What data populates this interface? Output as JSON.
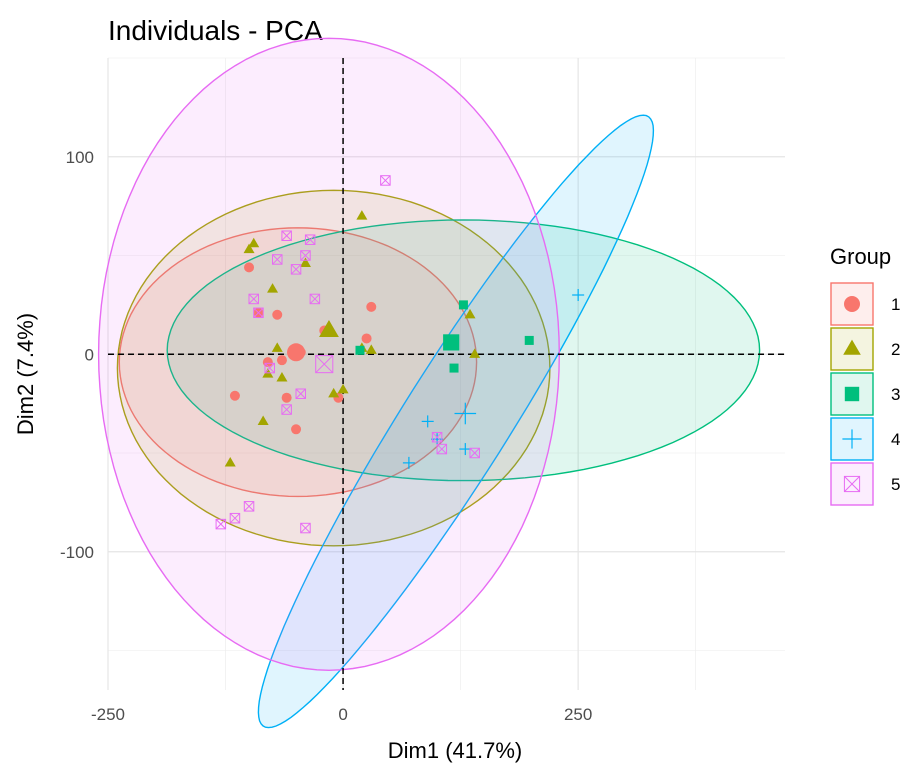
{
  "chart_data": {
    "type": "scatter",
    "title": "Individuals - PCA",
    "xlabel": "Dim1 (41.7%)",
    "ylabel": "Dim2 (7.4%)",
    "xlim": [
      -250,
      470
    ],
    "ylim": [
      -170,
      150
    ],
    "xticks": [
      -250,
      0,
      250
    ],
    "yticks": [
      -100,
      0,
      100
    ],
    "tick_labels": {
      "x": [
        "-250",
        "0",
        "250"
      ],
      "y": [
        "-100",
        "0",
        "100"
      ]
    },
    "grid": true,
    "legend": {
      "title": "Group",
      "position": "right"
    },
    "reference_lines": {
      "x": 0,
      "y": 0,
      "style": "dashed"
    },
    "series": [
      {
        "name": "1",
        "color": "#F8766D",
        "marker": "circle",
        "points": [
          [
            -115,
            -21
          ],
          [
            -100,
            44
          ],
          [
            -90,
            21
          ],
          [
            -80,
            -4
          ],
          [
            -70,
            20
          ],
          [
            -65,
            -3
          ],
          [
            -60,
            -22
          ],
          [
            -50,
            -38
          ],
          [
            -45,
            1
          ],
          [
            -20,
            12
          ],
          [
            -5,
            -22
          ],
          [
            25,
            8
          ],
          [
            30,
            24
          ]
        ],
        "centroid": [
          -50,
          1
        ],
        "ellipse": {
          "center": [
            -48,
            -4
          ],
          "rx": 190,
          "ry": 68,
          "angle": 0
        }
      },
      {
        "name": "2",
        "color": "#A3A500",
        "marker": "triangle",
        "points": [
          [
            -120,
            -55
          ],
          [
            -100,
            53
          ],
          [
            -95,
            56
          ],
          [
            -85,
            -34
          ],
          [
            -80,
            -10
          ],
          [
            -75,
            33
          ],
          [
            -70,
            3
          ],
          [
            -65,
            -12
          ],
          [
            -40,
            46
          ],
          [
            -10,
            -20
          ],
          [
            0,
            -18
          ],
          [
            20,
            70
          ],
          [
            20,
            3
          ],
          [
            30,
            2
          ],
          [
            135,
            20
          ],
          [
            140,
            0
          ]
        ],
        "centroid": [
          -15,
          12
        ],
        "ellipse": {
          "center": [
            -10,
            -7
          ],
          "rx": 230,
          "ry": 90,
          "angle": 0
        }
      },
      {
        "name": "3",
        "color": "#00BF7D",
        "marker": "square",
        "points": [
          [
            18,
            2
          ],
          [
            118,
            -7
          ],
          [
            128,
            25
          ],
          [
            198,
            7
          ]
        ],
        "centroid": [
          115,
          6
        ],
        "ellipse": {
          "center": [
            128,
            2
          ],
          "rx": 315,
          "ry": 66,
          "angle": 0
        }
      },
      {
        "name": "4",
        "color": "#00B0F6",
        "marker": "plus",
        "points": [
          [
            70,
            -55
          ],
          [
            90,
            -34
          ],
          [
            100,
            -43
          ],
          [
            130,
            -48
          ],
          [
            250,
            30
          ]
        ],
        "centroid": [
          130,
          -30
        ],
        "ellipse": {
          "center": [
            120,
            -34
          ],
          "rx": 258,
          "ry": 40,
          "angle": 36
        }
      },
      {
        "name": "5",
        "color": "#E76BF3",
        "marker": "squarecross",
        "points": [
          [
            -130,
            -86
          ],
          [
            -115,
            -83
          ],
          [
            -100,
            -77
          ],
          [
            -95,
            28
          ],
          [
            -90,
            21
          ],
          [
            -78,
            -7
          ],
          [
            -70,
            48
          ],
          [
            -60,
            60
          ],
          [
            -60,
            -28
          ],
          [
            -50,
            43
          ],
          [
            -45,
            -20
          ],
          [
            -40,
            50
          ],
          [
            -30,
            28
          ],
          [
            -40,
            -88
          ],
          [
            -35,
            58
          ],
          [
            45,
            88
          ],
          [
            100,
            -42
          ],
          [
            105,
            -48
          ],
          [
            140,
            -50
          ]
        ],
        "centroid": [
          -20,
          -5
        ],
        "ellipse": {
          "center": [
            -15,
            0
          ],
          "rx": 245,
          "ry": 160,
          "angle": 0
        }
      }
    ]
  }
}
